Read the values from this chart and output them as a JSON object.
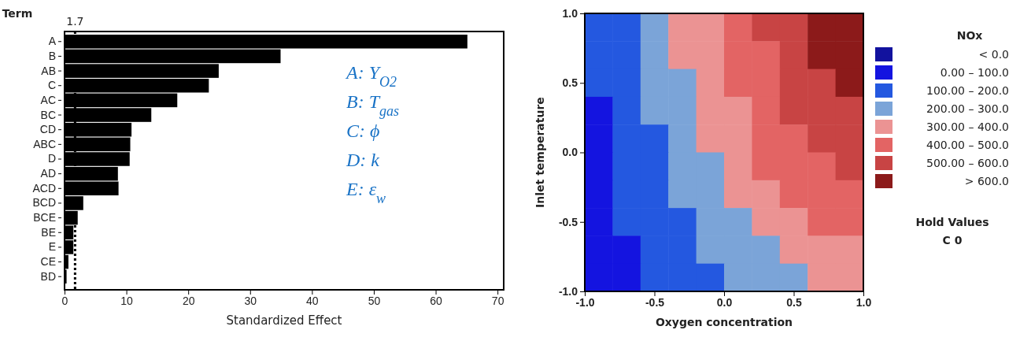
{
  "chart_data": [
    {
      "type": "bar",
      "orientation": "horizontal",
      "ylabel": "Term",
      "xlabel": "Standardized Effect",
      "categories": [
        "A",
        "B",
        "AB",
        "C",
        "AC",
        "BC",
        "CD",
        "ABC",
        "D",
        "AD",
        "ACD",
        "BCD",
        "BCE",
        "BE",
        "E",
        "CE",
        "BD"
      ],
      "values": [
        65,
        34.8,
        24.8,
        23.2,
        18.1,
        13.9,
        10.7,
        10.5,
        10.4,
        8.5,
        8.6,
        2.9,
        2.0,
        1.3,
        1.3,
        0.5,
        0.2
      ],
      "color": "#000000",
      "xlim": [
        0,
        71
      ],
      "xticks": [
        0,
        10,
        20,
        30,
        40,
        50,
        60,
        70
      ],
      "ref_lines": [
        {
          "axis": "x",
          "value": 1.7,
          "label": "1.7",
          "color": "#000000",
          "line_style": "dotted"
        }
      ],
      "annotations": [
        "A: Y$_{O2}$",
        "B: T$_{gas}$",
        "C: ϕ",
        "D: k",
        "E: ε$_{w}$"
      ],
      "grid": false
    },
    {
      "type": "heatmap",
      "xlabel": "Oxygen concentration",
      "ylabel": "Inlet temperature",
      "legend_title": "NOx",
      "xlim": [
        -1,
        1
      ],
      "ylim": [
        -1,
        1
      ],
      "xticks": [
        {
          "value": -1,
          "label": "-1.0"
        },
        {
          "value": -0.5,
          "label": "-0.5"
        },
        {
          "value": 0,
          "label": "0.0"
        },
        {
          "value": 0.5,
          "label": "0.5"
        },
        {
          "value": 1,
          "label": "1.0"
        }
      ],
      "yticks": [
        {
          "value": -1,
          "label": "-1.0"
        },
        {
          "value": -0.5,
          "label": "-0.5"
        },
        {
          "value": 0,
          "label": "0.0"
        },
        {
          "value": 0.5,
          "label": "0.5"
        },
        {
          "value": 1,
          "label": "1.0"
        }
      ],
      "cells": [
        [
          150,
          150,
          250,
          350,
          350,
          450,
          550,
          550,
          650,
          650
        ],
        [
          150,
          150,
          250,
          350,
          350,
          450,
          450,
          550,
          650,
          650
        ],
        [
          150,
          150,
          250,
          250,
          350,
          450,
          450,
          550,
          550,
          650
        ],
        [
          50,
          150,
          250,
          250,
          350,
          350,
          450,
          550,
          550,
          550
        ],
        [
          50,
          150,
          150,
          250,
          350,
          350,
          450,
          450,
          550,
          550
        ],
        [
          50,
          150,
          150,
          250,
          250,
          350,
          450,
          450,
          450,
          550
        ],
        [
          50,
          150,
          150,
          250,
          250,
          350,
          350,
          450,
          450,
          450
        ],
        [
          50,
          150,
          150,
          150,
          250,
          250,
          350,
          350,
          450,
          450
        ],
        [
          50,
          50,
          150,
          150,
          250,
          250,
          250,
          350,
          350,
          350
        ],
        [
          50,
          50,
          150,
          150,
          150,
          250,
          250,
          250,
          350,
          350
        ]
      ],
      "cticks": [
        {
          "value": -50,
          "label": "< 0.0"
        },
        {
          "value": 50,
          "label": "0.00 – 100.0"
        },
        {
          "value": 150,
          "label": "100.00 – 200.0"
        },
        {
          "value": 250,
          "label": "200.00 – 300.0"
        },
        {
          "value": 350,
          "label": "300.00 – 400.0"
        },
        {
          "value": 450,
          "label": "400.00 – 500.0"
        },
        {
          "value": 550,
          "label": "500.00 – 600.0"
        },
        {
          "value": 650,
          "label": "> 600.0"
        }
      ],
      "colors": [
        "#12129e",
        "#1414e0",
        "#2458e0",
        "#7ba4d8",
        "#eb9393",
        "#e36464",
        "#c84444",
        "#8c1a1a"
      ],
      "clim": [
        -100,
        700
      ],
      "annotations": [
        "Hold Values",
        "C 0"
      ]
    }
  ]
}
